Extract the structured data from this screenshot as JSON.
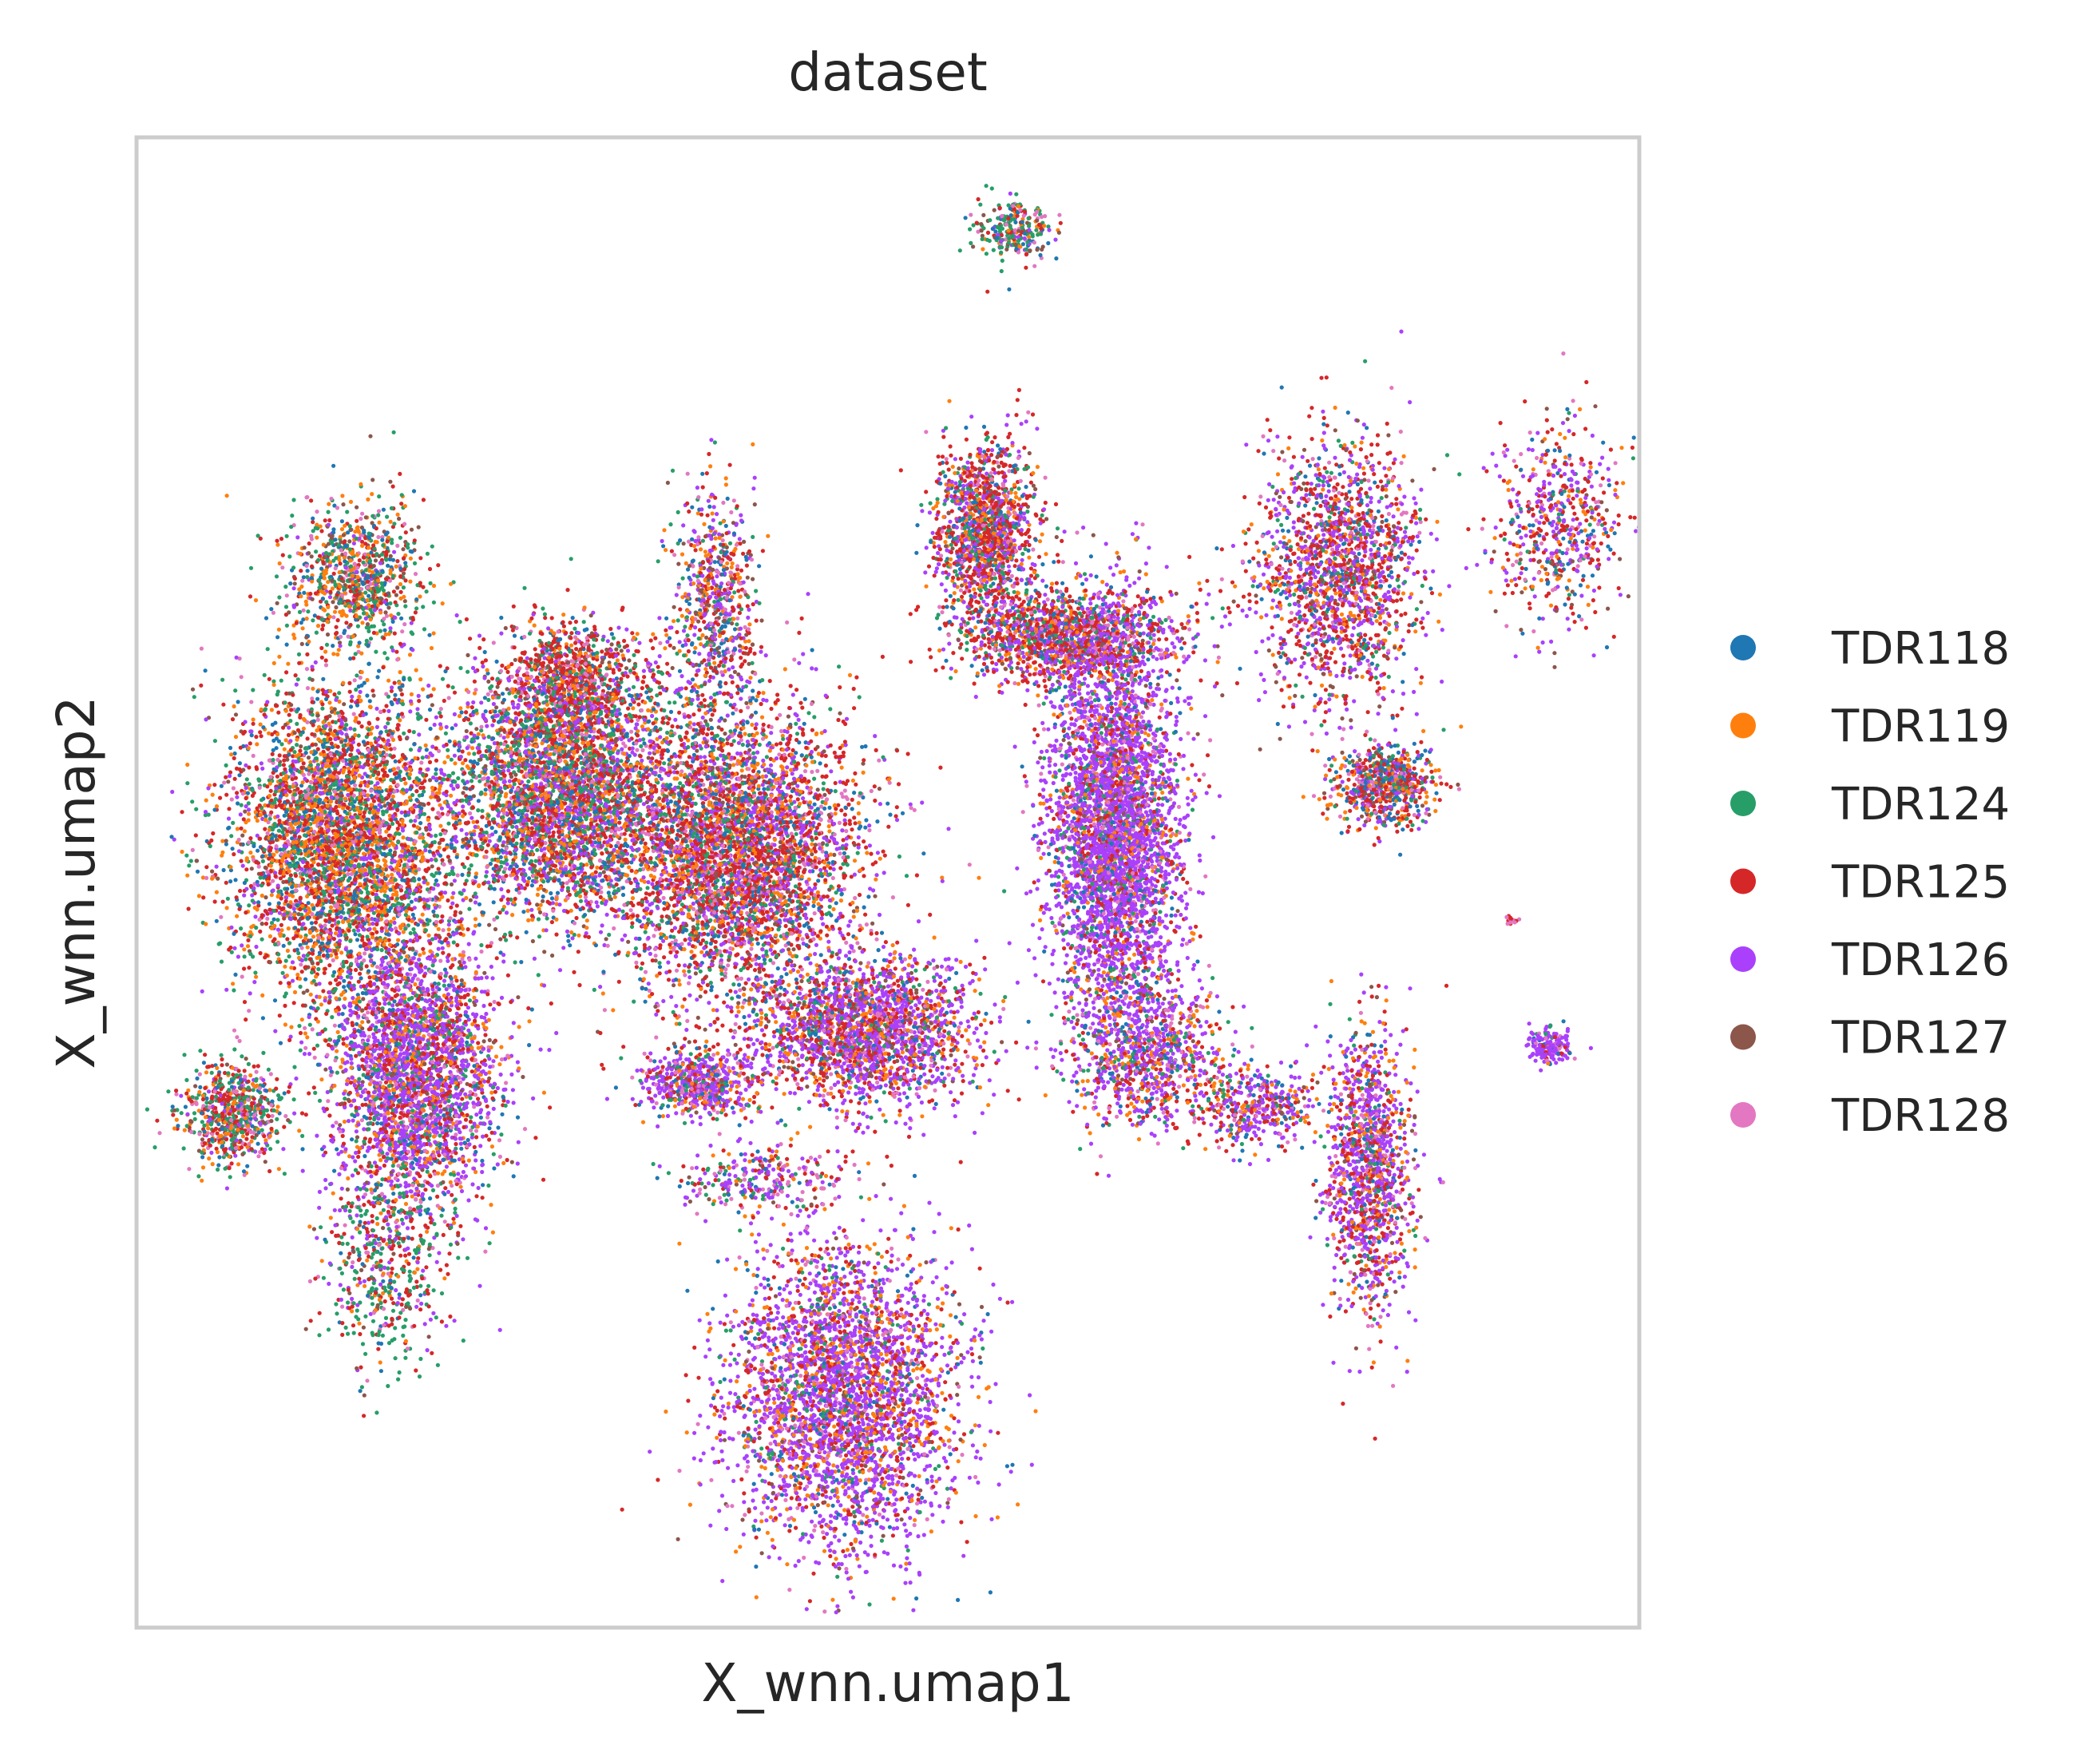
{
  "chart_data": {
    "type": "scatter",
    "title": "dataset",
    "xlabel": "X_wnn.umap1",
    "ylabel": "X_wnn.umap2",
    "xlim": [
      0,
      100
    ],
    "ylim": [
      0,
      100
    ],
    "grid": false,
    "ticks": false,
    "legend_position": "right",
    "series": [
      {
        "name": "TDR118",
        "color": "#1f77b4"
      },
      {
        "name": "TDR119",
        "color": "#ff7f0e"
      },
      {
        "name": "TDR124",
        "color": "#279e68"
      },
      {
        "name": "TDR125",
        "color": "#d62728"
      },
      {
        "name": "TDR126",
        "color": "#aa40fc"
      },
      {
        "name": "TDR127",
        "color": "#8c564b"
      },
      {
        "name": "TDR128",
        "color": "#e377c2"
      }
    ],
    "clusters": [
      {
        "cx": 58.5,
        "cy": 93.8,
        "rx": 2.2,
        "ry": 1.8,
        "n": 260,
        "w": [
          0.12,
          0.1,
          0.35,
          0.15,
          0.08,
          0.1,
          0.1
        ]
      },
      {
        "cx": 14.5,
        "cy": 70.5,
        "rx": 4.0,
        "ry": 4.5,
        "n": 900,
        "w": [
          0.15,
          0.2,
          0.25,
          0.15,
          0.05,
          0.12,
          0.08
        ]
      },
      {
        "cx": 29.0,
        "cy": 63.5,
        "rx": 4.0,
        "ry": 3.5,
        "n": 900,
        "w": [
          0.08,
          0.1,
          0.08,
          0.45,
          0.07,
          0.12,
          0.1
        ]
      },
      {
        "cx": 38.5,
        "cy": 68.5,
        "rx": 2.5,
        "ry": 7.0,
        "n": 700,
        "w": [
          0.12,
          0.15,
          0.1,
          0.2,
          0.2,
          0.13,
          0.1
        ]
      },
      {
        "cx": 13.5,
        "cy": 53.0,
        "rx": 6.5,
        "ry": 9.5,
        "n": 4200,
        "w": [
          0.12,
          0.22,
          0.16,
          0.28,
          0.1,
          0.05,
          0.07
        ]
      },
      {
        "cx": 18.5,
        "cy": 37.0,
        "rx": 5.0,
        "ry": 8.5,
        "n": 3000,
        "w": [
          0.08,
          0.12,
          0.08,
          0.18,
          0.42,
          0.04,
          0.08
        ]
      },
      {
        "cx": 6.5,
        "cy": 34.5,
        "rx": 3.0,
        "ry": 3.0,
        "n": 700,
        "w": [
          0.12,
          0.15,
          0.25,
          0.25,
          0.08,
          0.05,
          0.1
        ]
      },
      {
        "cx": 16.5,
        "cy": 24.5,
        "rx": 3.5,
        "ry": 6.5,
        "n": 500,
        "w": [
          0.08,
          0.1,
          0.4,
          0.2,
          0.1,
          0.05,
          0.07
        ]
      },
      {
        "cx": 28.0,
        "cy": 56.0,
        "rx": 7.0,
        "ry": 7.5,
        "n": 3800,
        "w": [
          0.12,
          0.14,
          0.2,
          0.22,
          0.2,
          0.05,
          0.07
        ]
      },
      {
        "cx": 40.0,
        "cy": 52.0,
        "rx": 7.5,
        "ry": 9.0,
        "n": 4500,
        "w": [
          0.1,
          0.14,
          0.1,
          0.3,
          0.2,
          0.06,
          0.1
        ]
      },
      {
        "cx": 48.5,
        "cy": 40.0,
        "rx": 6.5,
        "ry": 4.5,
        "n": 2200,
        "w": [
          0.08,
          0.12,
          0.06,
          0.2,
          0.38,
          0.05,
          0.11
        ]
      },
      {
        "cx": 37.5,
        "cy": 36.5,
        "rx": 3.5,
        "ry": 2.0,
        "n": 600,
        "w": [
          0.08,
          0.1,
          0.08,
          0.15,
          0.4,
          0.05,
          0.14
        ]
      },
      {
        "cx": 56.5,
        "cy": 73.5,
        "rx": 3.0,
        "ry": 5.5,
        "n": 1400,
        "w": [
          0.1,
          0.12,
          0.1,
          0.35,
          0.2,
          0.05,
          0.08
        ]
      },
      {
        "cx": 62.0,
        "cy": 66.5,
        "rx": 6.5,
        "ry": 2.8,
        "n": 1500,
        "w": [
          0.1,
          0.12,
          0.12,
          0.3,
          0.22,
          0.05,
          0.09
        ]
      },
      {
        "cx": 65.0,
        "cy": 53.5,
        "rx": 4.0,
        "ry": 12.0,
        "n": 4200,
        "w": [
          0.06,
          0.08,
          0.06,
          0.1,
          0.58,
          0.04,
          0.08
        ]
      },
      {
        "cx": 67.5,
        "cy": 38.5,
        "rx": 4.5,
        "ry": 4.5,
        "n": 900,
        "w": [
          0.1,
          0.12,
          0.08,
          0.18,
          0.4,
          0.04,
          0.08
        ]
      },
      {
        "cx": 80.0,
        "cy": 71.0,
        "rx": 5.0,
        "ry": 8.0,
        "n": 1800,
        "w": [
          0.1,
          0.1,
          0.08,
          0.3,
          0.28,
          0.06,
          0.08
        ]
      },
      {
        "cx": 83.0,
        "cy": 56.5,
        "rx": 3.0,
        "ry": 2.5,
        "n": 700,
        "w": [
          0.15,
          0.15,
          0.1,
          0.3,
          0.15,
          0.07,
          0.08
        ]
      },
      {
        "cx": 94.5,
        "cy": 74.0,
        "rx": 4.0,
        "ry": 6.0,
        "n": 600,
        "w": [
          0.12,
          0.12,
          0.06,
          0.3,
          0.25,
          0.07,
          0.08
        ]
      },
      {
        "cx": 82.0,
        "cy": 30.5,
        "rx": 2.5,
        "ry": 8.5,
        "n": 1300,
        "w": [
          0.08,
          0.12,
          0.06,
          0.25,
          0.38,
          0.05,
          0.06
        ]
      },
      {
        "cx": 74.5,
        "cy": 35.0,
        "rx": 3.5,
        "ry": 2.5,
        "n": 400,
        "w": [
          0.08,
          0.12,
          0.06,
          0.2,
          0.42,
          0.05,
          0.07
        ]
      },
      {
        "cx": 47.0,
        "cy": 15.5,
        "rx": 7.0,
        "ry": 9.0,
        "n": 3500,
        "w": [
          0.06,
          0.14,
          0.05,
          0.16,
          0.48,
          0.04,
          0.07
        ]
      },
      {
        "cx": 41.5,
        "cy": 30.0,
        "rx": 5.0,
        "ry": 2.0,
        "n": 300,
        "w": [
          0.08,
          0.1,
          0.12,
          0.2,
          0.3,
          0.06,
          0.14
        ]
      },
      {
        "cx": 94.0,
        "cy": 39.0,
        "rx": 1.2,
        "ry": 1.0,
        "n": 180,
        "w": [
          0.05,
          0.05,
          0.02,
          0.08,
          0.7,
          0.02,
          0.08
        ]
      },
      {
        "cx": 91.5,
        "cy": 47.5,
        "rx": 0.4,
        "ry": 0.4,
        "n": 15,
        "w": [
          0,
          0,
          0,
          0.5,
          0,
          0,
          0.5
        ]
      }
    ]
  }
}
